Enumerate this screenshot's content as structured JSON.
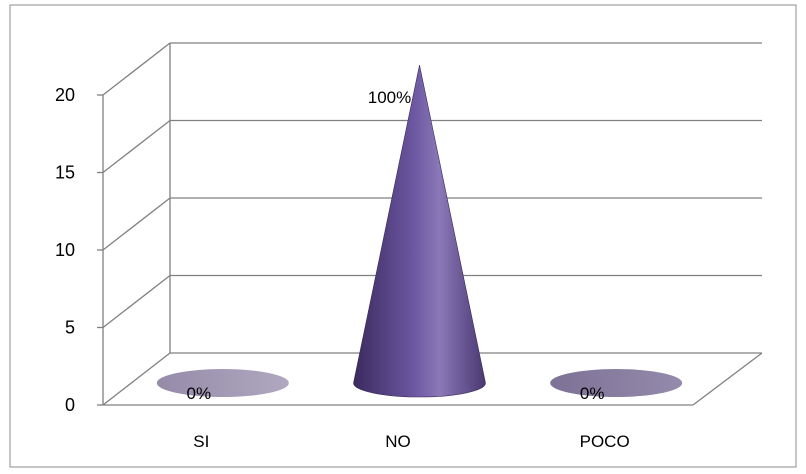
{
  "chart_data": {
    "type": "bar",
    "shape": "cone-3d",
    "categories": [
      "SI",
      "NO",
      "POCO"
    ],
    "values": [
      0,
      20,
      0
    ],
    "data_labels": [
      "0%",
      "100%",
      "0%"
    ],
    "y_ticks": [
      "0",
      "5",
      "10",
      "15",
      "20"
    ],
    "ylim": [
      0,
      20
    ],
    "grid": true,
    "legend": "none",
    "colors": {
      "cone_dark": "#3b2a5e",
      "cone_mid": "#6b56a0",
      "cone_light": "#8a78b8",
      "base_light": "#a49bb8",
      "base_dark": "#8c82a3",
      "grid": "#808080"
    }
  }
}
